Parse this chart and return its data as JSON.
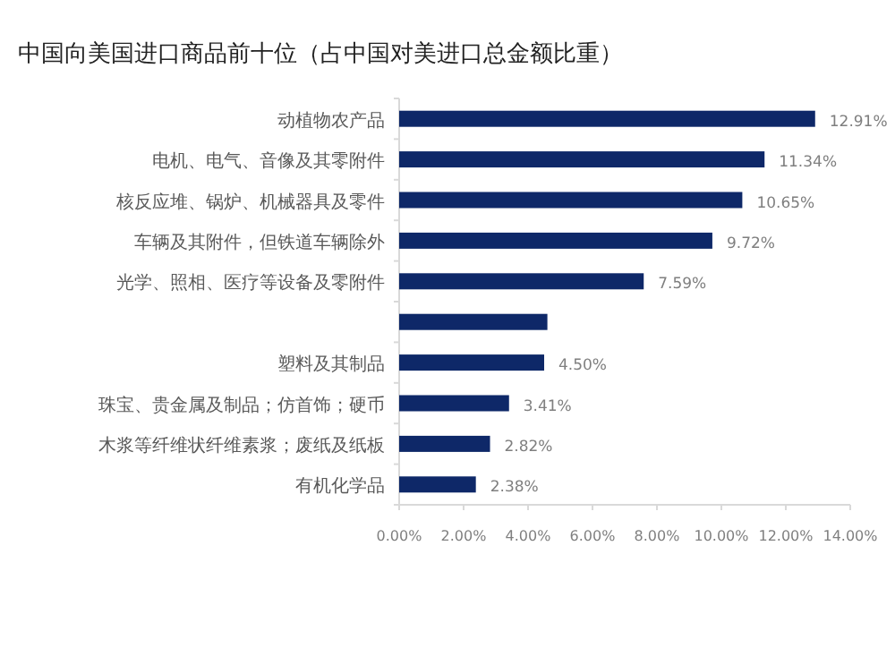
{
  "chart_data": {
    "type": "bar",
    "orientation": "horizontal",
    "title": "中国向美国进口商品前十位（占中国对美进口总金额比重）",
    "categories": [
      "动植物农产品",
      "电机、电气、音像及其零附件",
      "核反应堆、锅炉、机械器具及零件",
      "车辆及其附件，但铁道车辆除外",
      "光学、照相、医疗等设备及零附件",
      null,
      "塑料及其制品",
      "珠宝、贵金属及制品；仿首饰；硬币",
      "木浆等纤维状纤维素浆；废纸及纸板",
      "有机化学品"
    ],
    "values": [
      12.91,
      11.34,
      10.65,
      9.72,
      7.59,
      4.6,
      4.5,
      3.41,
      2.82,
      2.38
    ],
    "value_labels": [
      "12.91%",
      "11.34%",
      "10.65%",
      "9.72%",
      "7.59%",
      null,
      "4.50%",
      "3.41%",
      "2.82%",
      "2.38%"
    ],
    "color": "#0e2868",
    "xlim": [
      0,
      14
    ],
    "xticks": [
      {
        "value": 0,
        "label": "0.00%"
      },
      {
        "value": 2,
        "label": "2.00%"
      },
      {
        "value": 4,
        "label": "4.00%"
      },
      {
        "value": 6,
        "label": "6.00%"
      },
      {
        "value": 8,
        "label": "8.00%"
      },
      {
        "value": 10,
        "label": "10.00%"
      },
      {
        "value": 12,
        "label": "12.00%"
      },
      {
        "value": 14,
        "label": "14.00%"
      }
    ],
    "grid": false
  }
}
